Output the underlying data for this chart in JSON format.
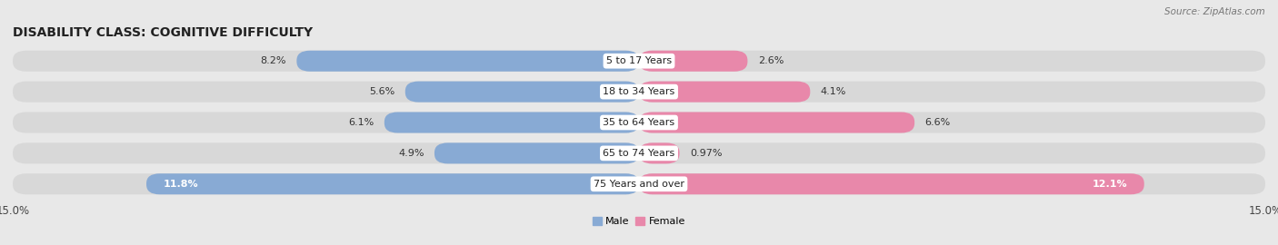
{
  "title": "DISABILITY CLASS: COGNITIVE DIFFICULTY",
  "source": "Source: ZipAtlas.com",
  "categories": [
    "5 to 17 Years",
    "18 to 34 Years",
    "35 to 64 Years",
    "65 to 74 Years",
    "75 Years and over"
  ],
  "male_values": [
    8.2,
    5.6,
    6.1,
    4.9,
    11.8
  ],
  "female_values": [
    2.6,
    4.1,
    6.6,
    0.97,
    12.1
  ],
  "male_color": "#88aad4",
  "female_color": "#e888aa",
  "male_label": "Male",
  "female_label": "Female",
  "x_max": 15.0,
  "page_bg_color": "#e8e8e8",
  "row_bg_color": "#d8d8d8",
  "bar_bg_color": "#d8d8d8",
  "title_fontsize": 10,
  "label_fontsize": 8,
  "value_fontsize": 8,
  "tick_fontsize": 8.5,
  "source_fontsize": 7.5
}
